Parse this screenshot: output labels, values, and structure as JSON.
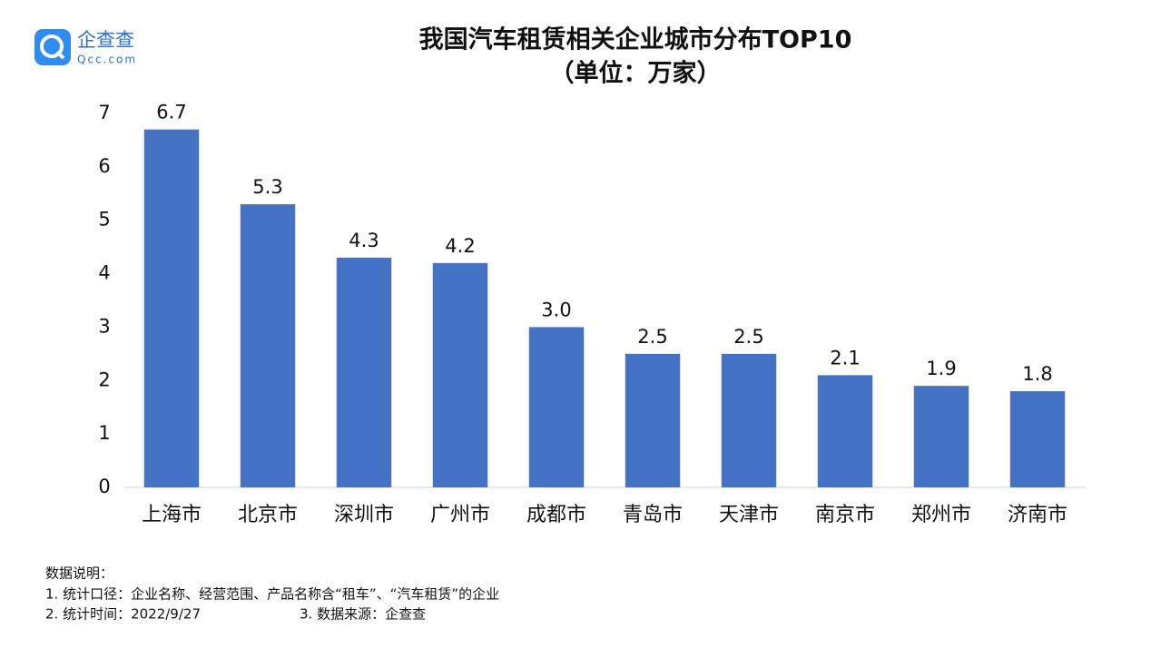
{
  "logo": {
    "name": "企查查",
    "domain": "Qcc.com"
  },
  "chart_data": {
    "type": "bar",
    "title": "我国汽车租赁相关企业城市分布TOP10",
    "subtitle": "（单位：万家）",
    "categories": [
      "上海市",
      "北京市",
      "深圳市",
      "广州市",
      "成都市",
      "青岛市",
      "天津市",
      "南京市",
      "郑州市",
      "济南市"
    ],
    "values": [
      6.7,
      5.3,
      4.3,
      4.2,
      3.0,
      2.5,
      2.5,
      2.1,
      1.9,
      1.8
    ],
    "value_labels": [
      "6.7",
      "5.3",
      "4.3",
      "4.2",
      "3.0",
      "2.5",
      "2.5",
      "2.1",
      "1.9",
      "1.8"
    ],
    "color": "#4472c4",
    "ylim": [
      0,
      7
    ],
    "yticks": [
      0,
      1,
      2,
      3,
      4,
      5,
      6,
      7
    ],
    "grid": false
  },
  "notes": [
    "数据说明：",
    "1. 统计口径：企业名称、经营范围、产品名称含“租车”、“汽车租赁”的企业",
    "2. 统计时间：2022/9/27",
    "3. 数据来源：企查查"
  ]
}
